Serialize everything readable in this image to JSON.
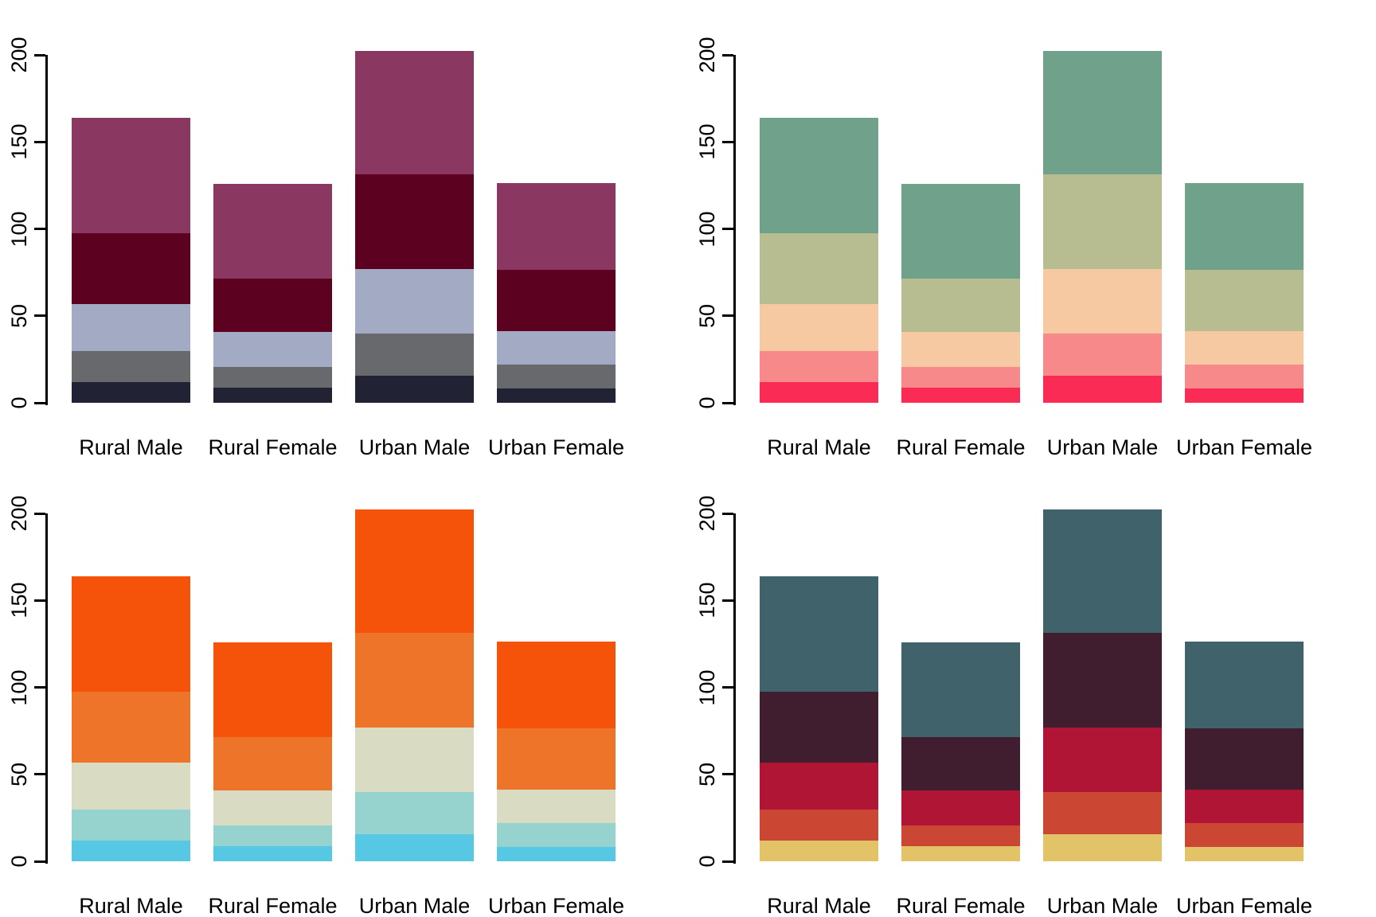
{
  "page": {
    "background": "#ffffff",
    "text_color": "#000000",
    "axis_color": "#000000"
  },
  "chart_data": [
    {
      "id": "top-left",
      "type": "bar",
      "stacked": true,
      "categories": [
        "Rural Male",
        "Rural Female",
        "Urban Male",
        "Urban Female"
      ],
      "stacks": [
        [
          11.7,
          18.1,
          26.9,
          41.0,
          66.0
        ],
        [
          8.7,
          11.7,
          20.3,
          30.9,
          54.3
        ],
        [
          15.4,
          24.3,
          37.0,
          54.6,
          71.1
        ],
        [
          8.4,
          13.6,
          19.3,
          35.1,
          50.0
        ]
      ],
      "totals": [
        163.7,
        125.9,
        202.4,
        126.4
      ],
      "colors": [
        "#212234",
        "#67696C",
        "#A3ABC4",
        "#5C0220",
        "#8A3862"
      ],
      "yticks": [
        0,
        50,
        100,
        150,
        200
      ],
      "ylim": [
        0,
        200
      ],
      "grid": false,
      "legend": "none"
    },
    {
      "id": "top-right",
      "type": "bar",
      "stacked": true,
      "categories": [
        "Rural Male",
        "Rural Female",
        "Urban Male",
        "Urban Female"
      ],
      "stacks": [
        [
          11.7,
          18.1,
          26.9,
          41.0,
          66.0
        ],
        [
          8.7,
          11.7,
          20.3,
          30.9,
          54.3
        ],
        [
          15.4,
          24.3,
          37.0,
          54.6,
          71.1
        ],
        [
          8.4,
          13.6,
          19.3,
          35.1,
          50.0
        ]
      ],
      "totals": [
        163.7,
        125.9,
        202.4,
        126.4
      ],
      "colors": [
        "#FA2B55",
        "#F8898A",
        "#F6C9A2",
        "#B7BD90",
        "#70A18B"
      ],
      "yticks": [
        0,
        50,
        100,
        150,
        200
      ],
      "ylim": [
        0,
        200
      ],
      "grid": false,
      "legend": "none"
    },
    {
      "id": "bottom-left",
      "type": "bar",
      "stacked": true,
      "categories": [
        "Rural Male",
        "Rural Female",
        "Urban Male",
        "Urban Female"
      ],
      "stacks": [
        [
          11.7,
          18.1,
          26.9,
          41.0,
          66.0
        ],
        [
          8.7,
          11.7,
          20.3,
          30.9,
          54.3
        ],
        [
          15.4,
          24.3,
          37.0,
          54.6,
          71.1
        ],
        [
          8.4,
          13.6,
          19.3,
          35.1,
          50.0
        ]
      ],
      "totals": [
        163.7,
        125.9,
        202.4,
        126.4
      ],
      "colors": [
        "#57C8E4",
        "#96D2CE",
        "#D9DCC2",
        "#ED7428",
        "#F45309"
      ],
      "yticks": [
        0,
        50,
        100,
        150,
        200
      ],
      "ylim": [
        0,
        200
      ],
      "grid": false,
      "legend": "none"
    },
    {
      "id": "bottom-right",
      "type": "bar",
      "stacked": true,
      "categories": [
        "Rural Male",
        "Rural Female",
        "Urban Male",
        "Urban Female"
      ],
      "stacks": [
        [
          11.7,
          18.1,
          26.9,
          41.0,
          66.0
        ],
        [
          8.7,
          11.7,
          20.3,
          30.9,
          54.3
        ],
        [
          15.4,
          24.3,
          37.0,
          54.6,
          71.1
        ],
        [
          8.4,
          13.6,
          19.3,
          35.1,
          50.0
        ]
      ],
      "totals": [
        163.7,
        125.9,
        202.4,
        126.4
      ],
      "colors": [
        "#E3C368",
        "#CC4733",
        "#B11535",
        "#411E2F",
        "#40636B"
      ],
      "yticks": [
        0,
        50,
        100,
        150,
        200
      ],
      "ylim": [
        0,
        200
      ],
      "grid": false,
      "legend": "none"
    }
  ]
}
